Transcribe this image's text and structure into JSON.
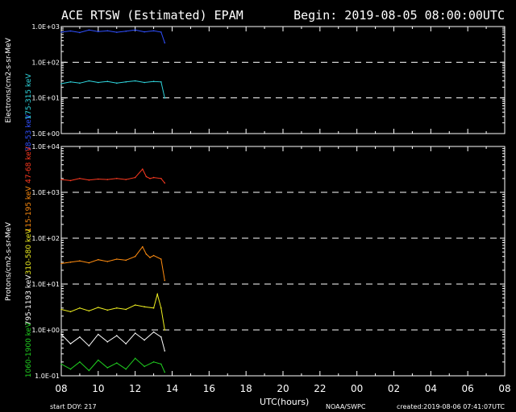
{
  "header": {
    "title": "ACE RTSW (Estimated) EPAM",
    "begin": "Begin: 2019-08-05 08:00:00UTC"
  },
  "footer": {
    "start_doy": "start DOY:  217",
    "xlabel": "UTC(hours)",
    "source": "NOAA/SWPC",
    "created": "created:2019-08-06 07:41:07UTC"
  },
  "colors": {
    "background": "#000000",
    "axes": "#ffffff",
    "e38": "#3050ff",
    "e175": "#30d8e0",
    "p47": "#ff3a20",
    "p115": "#ff8c10",
    "p310": "#f0f020",
    "p795": "#ffffff",
    "p1060": "#20d020"
  },
  "chart_data": [
    {
      "type": "line",
      "panel": "electrons",
      "ylabel": "Electrons/cm2-s-sr-MeV",
      "yscale": "log",
      "ylim": [
        1,
        1000
      ],
      "yticks": [
        "1.0E+00",
        "1.0E+01",
        "1.0E+02",
        "1.0E+03"
      ],
      "xlim": [
        8,
        32
      ],
      "xticks": [
        "08",
        "10",
        "12",
        "14",
        "16",
        "18",
        "20",
        "22",
        "00",
        "02",
        "04",
        "06",
        "08"
      ],
      "grid": "dashed at 1.0E+01 and 1.0E+02",
      "series": [
        {
          "name": "38-53 keV",
          "color": "#3050ff",
          "x": [
            8.0,
            8.5,
            9.0,
            9.5,
            10.0,
            10.5,
            11.0,
            11.5,
            12.0,
            12.5,
            13.0,
            13.4,
            13.6
          ],
          "y": [
            700,
            750,
            680,
            800,
            720,
            760,
            690,
            740,
            800,
            710,
            760,
            700,
            350
          ]
        },
        {
          "name": "175-315 keV",
          "color": "#30d8e0",
          "x": [
            8.0,
            8.5,
            9.0,
            9.5,
            10.0,
            10.5,
            11.0,
            11.5,
            12.0,
            12.5,
            13.0,
            13.4,
            13.6
          ],
          "y": [
            25,
            28,
            26,
            30,
            27,
            29,
            26,
            28,
            30,
            27,
            29,
            28,
            10
          ]
        }
      ]
    },
    {
      "type": "line",
      "panel": "protons",
      "ylabel": "Protons/cm2-s-sr-MeV",
      "yscale": "log",
      "ylim": [
        0.1,
        10000
      ],
      "yticks": [
        "1.0E-01",
        "1.0E+00",
        "1.0E+01",
        "1.0E+02",
        "1.0E+03",
        "1.0E+04"
      ],
      "xlim": [
        8,
        32
      ],
      "xticks": [
        "08",
        "10",
        "12",
        "14",
        "16",
        "18",
        "20",
        "22",
        "00",
        "02",
        "04",
        "06",
        "08"
      ],
      "grid": "dashed at 1.0E+00, 1.0E+01, 1.0E+02, 1.0E+03",
      "series": [
        {
          "name": "47-68 keV",
          "color": "#ff3a20",
          "x": [
            8.0,
            8.5,
            9.0,
            9.5,
            10.0,
            10.5,
            11.0,
            11.5,
            12.0,
            12.4,
            12.6,
            12.8,
            13.0,
            13.4,
            13.6
          ],
          "y": [
            1900,
            1800,
            2000,
            1850,
            1950,
            1900,
            2000,
            1900,
            2100,
            3200,
            2200,
            2000,
            2100,
            2000,
            1600
          ]
        },
        {
          "name": "115-195 keV",
          "color": "#ff8c10",
          "x": [
            8.0,
            8.5,
            9.0,
            9.5,
            10.0,
            10.5,
            11.0,
            11.5,
            12.0,
            12.4,
            12.6,
            12.8,
            13.0,
            13.4,
            13.6
          ],
          "y": [
            28,
            30,
            32,
            29,
            34,
            31,
            35,
            33,
            40,
            65,
            45,
            38,
            42,
            35,
            12
          ]
        },
        {
          "name": "310-580 keV",
          "color": "#f0f020",
          "x": [
            8.0,
            8.5,
            9.0,
            9.5,
            10.0,
            10.5,
            11.0,
            11.5,
            12.0,
            12.5,
            13.0,
            13.2,
            13.4,
            13.6
          ],
          "y": [
            2.8,
            2.5,
            3.0,
            2.6,
            3.1,
            2.7,
            3.0,
            2.8,
            3.5,
            3.2,
            3.0,
            6.0,
            3.0,
            1.0
          ]
        },
        {
          "name": "795-1193 keV",
          "color": "#ffffff",
          "x": [
            8.0,
            8.5,
            9.0,
            9.5,
            10.0,
            10.5,
            11.0,
            11.5,
            12.0,
            12.5,
            13.0,
            13.4,
            13.6
          ],
          "y": [
            0.8,
            0.5,
            0.7,
            0.45,
            0.8,
            0.55,
            0.75,
            0.5,
            0.85,
            0.6,
            0.9,
            0.7,
            0.35
          ]
        },
        {
          "name": "1060-1900 keV",
          "color": "#20d020",
          "x": [
            8.0,
            8.5,
            9.0,
            9.5,
            10.0,
            10.5,
            11.0,
            11.5,
            12.0,
            12.5,
            13.0,
            13.4,
            13.6
          ],
          "y": [
            0.18,
            0.14,
            0.2,
            0.13,
            0.22,
            0.15,
            0.19,
            0.14,
            0.24,
            0.16,
            0.2,
            0.18,
            0.12
          ]
        }
      ]
    }
  ]
}
